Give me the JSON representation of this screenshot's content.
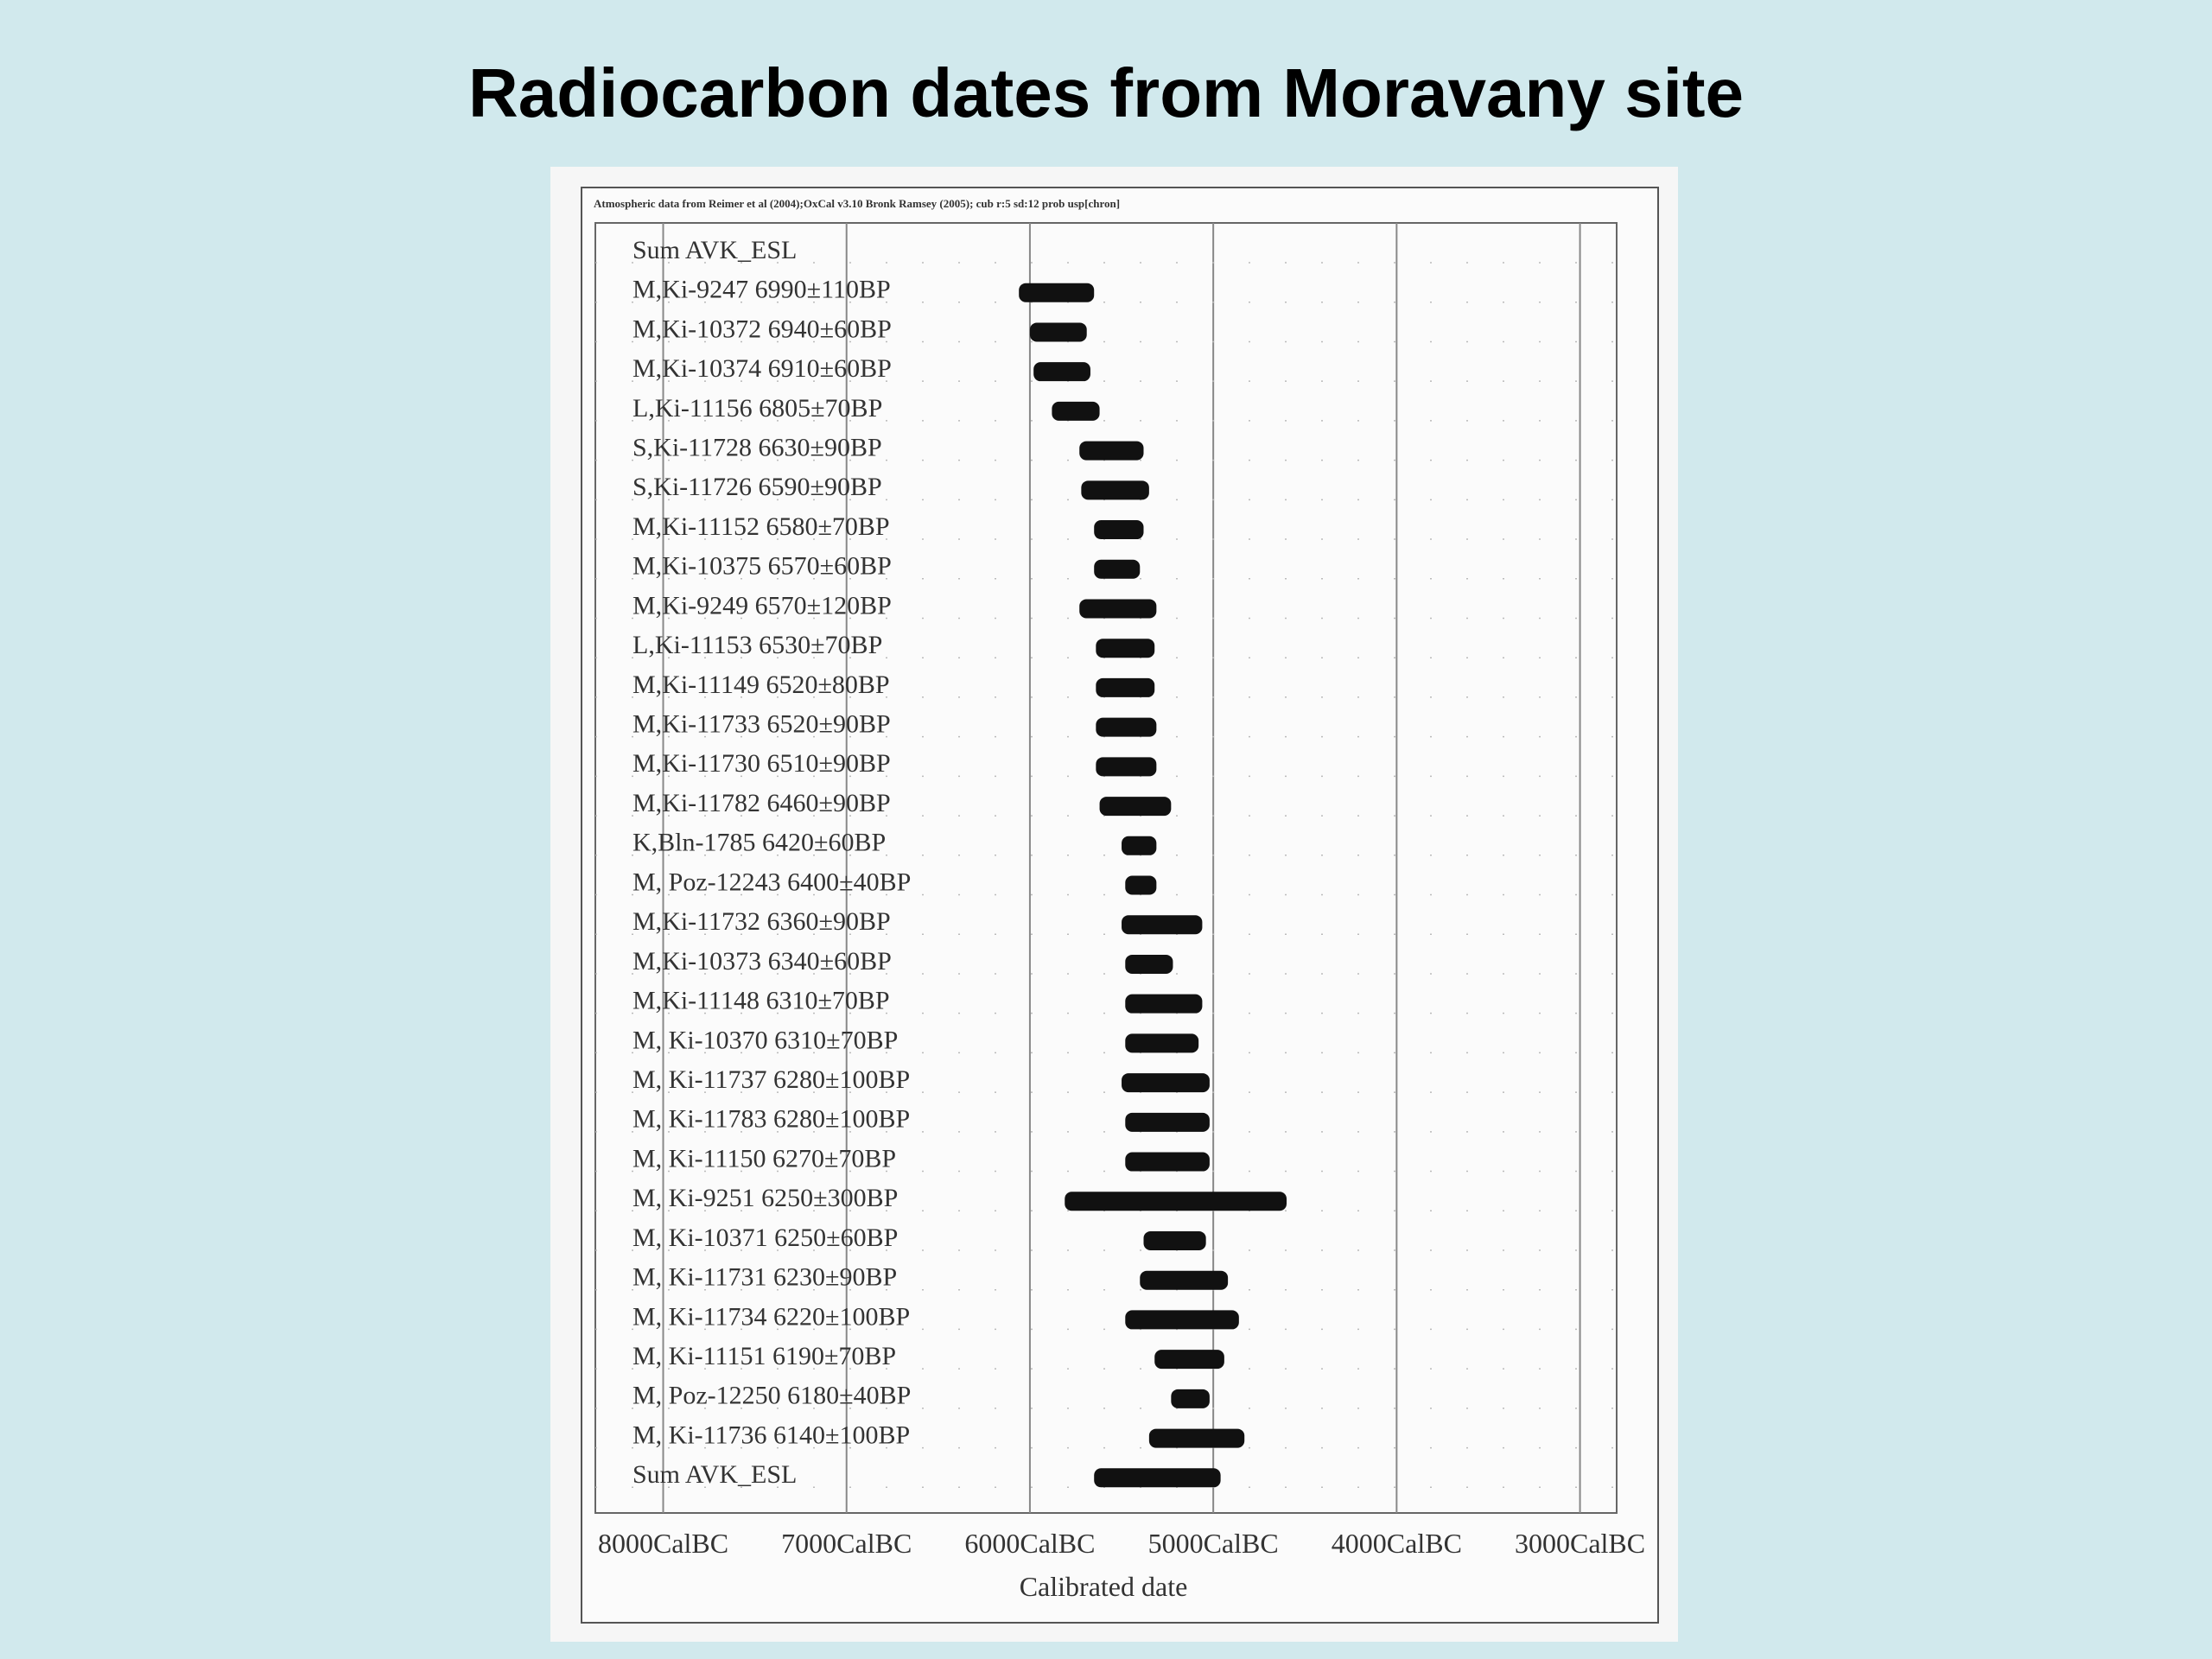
{
  "title": "Radiocarbon dates from Moravany site",
  "chart_data": {
    "type": "oxcal",
    "header": "Atmospheric data from Reimer et al (2004);OxCal v3.10 Bronk Ramsey (2005); cub r:5 sd:12 prob usp[chron]",
    "xlabel": "Calibrated date",
    "xlim": [
      8370,
      2800
    ],
    "xticks": [
      {
        "value": 8000,
        "label": "8000CalBC"
      },
      {
        "value": 7000,
        "label": "7000CalBC"
      },
      {
        "value": 6000,
        "label": "6000CalBC"
      },
      {
        "value": 5000,
        "label": "5000CalBC"
      },
      {
        "value": 4000,
        "label": "4000CalBC"
      },
      {
        "value": 3000,
        "label": "3000CalBC"
      }
    ],
    "categories": [
      "Sum AVK_ESL",
      "M,Ki-9247  6990±110BP",
      "M,Ki-10372  6940±60BP",
      "M,Ki-10374  6910±60BP",
      "L,Ki-11156  6805±70BP",
      "S,Ki-11728  6630±90BP",
      "S,Ki-11726  6590±90BP",
      "M,Ki-11152  6580±70BP",
      "M,Ki-10375  6570±60BP",
      "M,Ki-9249  6570±120BP",
      "L,Ki-11153  6530±70BP",
      "M,Ki-11149  6520±80BP",
      "M,Ki-11733  6520±90BP",
      "M,Ki-11730  6510±90BP",
      "M,Ki-11782  6460±90BP",
      "K,Bln-1785  6420±60BP",
      "M, Poz-12243  6400±40BP",
      "M,Ki-11732  6360±90BP",
      "M,Ki-10373  6340±60BP",
      "M,Ki-11148  6310±70BP",
      "M, Ki-10370  6310±70BP",
      "M, Ki-11737  6280±100BP",
      "M, Ki-11783  6280±100BP",
      "M, Ki-11150  6270±70BP",
      "M, Ki-9251  6250±300BP",
      "M, Ki-10371  6250±60BP",
      "M, Ki-11731  6230±90BP",
      "M, Ki-11734  6220±100BP",
      "M, Ki-11151  6190±70BP",
      "M, Poz-12250  6180±40BP",
      "M, Ki-11736  6140±100BP",
      "Sum AVK_ESL"
    ],
    "start": [
      null,
      6060,
      6000,
      5980,
      5880,
      5730,
      5720,
      5650,
      5650,
      5730,
      5640,
      5640,
      5640,
      5640,
      5620,
      5500,
      5480,
      5500,
      5480,
      5480,
      5480,
      5500,
      5480,
      5480,
      5810,
      5380,
      5400,
      5480,
      5320,
      5230,
      5350,
      5650
    ],
    "end": [
      null,
      5650,
      5690,
      5670,
      5620,
      5380,
      5350,
      5380,
      5400,
      5310,
      5320,
      5320,
      5310,
      5310,
      5230,
      5310,
      5310,
      5060,
      5220,
      5060,
      5080,
      5020,
      5020,
      5020,
      4600,
      5040,
      4920,
      4860,
      4940,
      5020,
      4830,
      4960
    ]
  }
}
